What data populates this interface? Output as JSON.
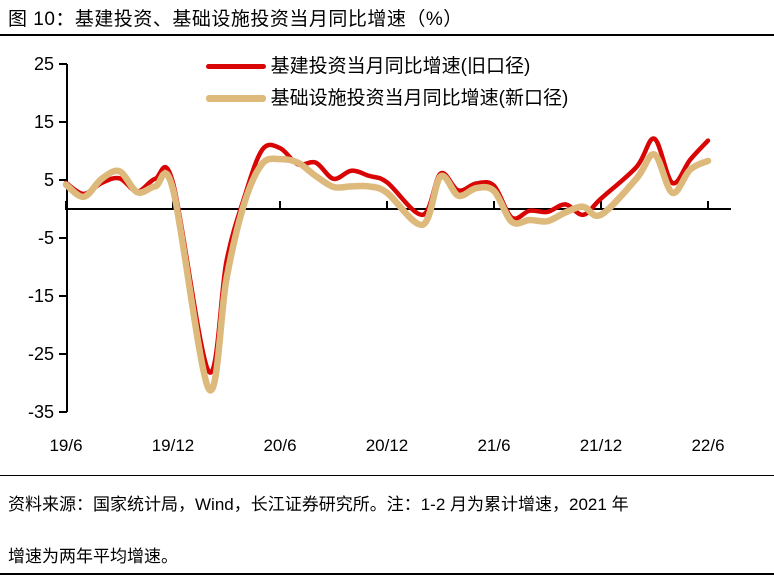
{
  "figure": {
    "title": "图 10：基建投资、基础设施投资当月同比增速（%）",
    "footer_lines": [
      "资料来源：国家统计局，Wind，长江证券研究所。注：1-2 月为累计增速，2021 年",
      "增速为两年平均增速。"
    ]
  },
  "colors": {
    "series_red": "#D90404",
    "series_tan": "#DDB97C",
    "axis": "#000000",
    "text": "#000000",
    "background": "#FFFFFF"
  },
  "chart_data": {
    "type": "line",
    "title": "图 10：基建投资、基础设施投资当月同比增速（%）",
    "xlabel": "",
    "ylabel": "",
    "ylim": [
      -35,
      25
    ],
    "y_ticks": [
      25,
      15,
      5,
      -5,
      -15,
      -25,
      -35
    ],
    "x_ticks": [
      "19/6",
      "19/12",
      "20/6",
      "20/12",
      "21/6",
      "21/12",
      "22/6"
    ],
    "grid": false,
    "legend_position": "top-center",
    "note": "x labels are year/month; January omitted (1-2月为累计增速)",
    "x": [
      "19/6",
      "19/7",
      "19/8",
      "19/9",
      "19/10",
      "19/11",
      "19/12",
      "20/2",
      "20/3",
      "20/4",
      "20/5",
      "20/6",
      "20/7",
      "20/8",
      "20/9",
      "20/10",
      "20/11",
      "20/12",
      "21/2",
      "21/3",
      "21/4",
      "21/5",
      "21/6",
      "21/7",
      "21/8",
      "21/9",
      "21/10",
      "21/11",
      "21/12",
      "22/2",
      "22/3",
      "22/4",
      "22/5",
      "22/6"
    ],
    "series": [
      {
        "name": "基建投资当月同比增速(旧口径)",
        "color": "#D90404",
        "values": [
          4.5,
          2.6,
          4.5,
          5.3,
          3.0,
          5.2,
          4.5,
          -28.0,
          -9.0,
          2.0,
          10.2,
          10.5,
          7.7,
          8.0,
          5.2,
          6.6,
          5.7,
          4.6,
          -1.0,
          6.1,
          3.2,
          4.4,
          4.0,
          -1.5,
          -0.3,
          -0.5,
          0.8,
          -1.0,
          1.8,
          7.3,
          12.1,
          4.5,
          8.5,
          11.8
        ]
      },
      {
        "name": "基础设施投资当月同比增速(新口径)",
        "color": "#DDB97C",
        "values": [
          4.2,
          2.1,
          5.2,
          6.5,
          2.9,
          3.9,
          3.4,
          -31.0,
          -12.0,
          1.0,
          7.8,
          8.6,
          8.0,
          5.7,
          3.8,
          3.9,
          3.9,
          2.8,
          -2.7,
          5.6,
          2.3,
          3.6,
          3.1,
          -2.2,
          -1.9,
          -2.1,
          -0.6,
          0.4,
          -1.0,
          5.3,
          9.4,
          2.8,
          6.8,
          8.3
        ]
      }
    ]
  }
}
